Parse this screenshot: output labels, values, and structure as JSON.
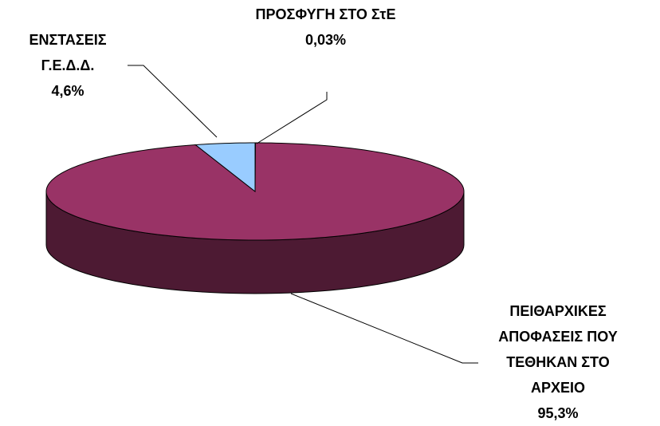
{
  "chart_data": {
    "type": "pie",
    "three_d": true,
    "categories": [
      "ΠΡΟΣΦΥΓΗ ΣΤΟ ΣτΕ",
      "ΠΕΙΘΑΡΧΙΚΕΣ ΑΠΟΦΑΣΕΙΣ ΠΟΥ ΤΕΘΗΚΑΝ ΣΤΟ ΑΡΧΕΙΟ",
      "ΕΝΣΤΑΣΕΙΣ Γ.Ε.Δ.Δ."
    ],
    "values": [
      0.03,
      95.3,
      4.6
    ],
    "value_labels": [
      "0,03%",
      "95,3%",
      "4,6%"
    ],
    "colors": [
      "#ffffcc",
      "#993366",
      "#99ccff"
    ]
  }
}
